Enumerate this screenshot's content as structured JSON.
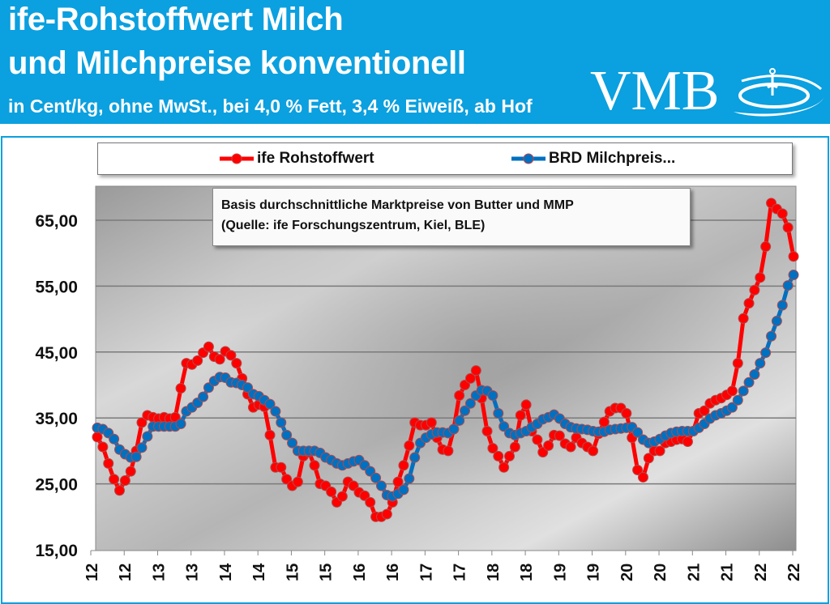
{
  "header": {
    "title_line1": "ife-Rohstoffwert Milch",
    "title_line2": "und Milchpreise konventionell",
    "subtitle": "in Cent/kg, ohne MwSt., bei 4,0 % Fett, 3,4 % Eiweiß, ab Hof",
    "logo_text": "VMB",
    "background_color": "#0ba0df"
  },
  "annotation": {
    "line1": "Basis durchschnittliche Marktpreise von Butter und MMP",
    "line2": "(Quelle: ife Forschungszentrum, Kiel, BLE)"
  },
  "chart_data": {
    "type": "line",
    "title": "",
    "xlabel": "",
    "ylabel": "",
    "ylim": [
      15,
      70
    ],
    "y_ticks": [
      "15,00",
      "25,00",
      "35,00",
      "45,00",
      "55,00",
      "65,00"
    ],
    "y_tick_values": [
      15,
      25,
      35,
      45,
      55,
      65
    ],
    "x_tick_labels": [
      "12",
      "12",
      "13",
      "13",
      "14",
      "14",
      "15",
      "15",
      "16",
      "16",
      "17",
      "17",
      "18",
      "18",
      "19",
      "19",
      "20",
      "20",
      "21",
      "21",
      "22",
      "22"
    ],
    "grid": true,
    "legend_position": "top",
    "series": [
      {
        "name": "ife Rohstoffwert",
        "color": "#ff0000",
        "values": [
          32.1,
          30.6,
          28.1,
          25.7,
          24.0,
          25.5,
          26.9,
          30,
          34.3,
          35.4,
          35.1,
          34.9,
          35.1,
          34.9,
          35.1,
          39.5,
          43.3,
          43.1,
          43.7,
          44.9,
          45.8,
          44.3,
          43.9,
          45.1,
          44.5,
          43.3,
          41,
          38.6,
          36.6,
          37,
          36.7,
          32.4,
          27.5,
          27.5,
          25.7,
          24.7,
          25.3,
          29.2,
          29.8,
          27.8,
          25,
          24.7,
          23.8,
          22.2,
          23.1,
          25.3,
          24.7,
          23.7,
          23.2,
          22.2,
          20,
          20,
          20.4,
          22.2,
          25.3,
          27.8,
          30.8,
          34.3,
          33.9,
          33.9,
          34.3,
          32,
          30.2,
          30,
          33.3,
          38.4,
          40,
          41,
          42.2,
          38,
          33,
          30.4,
          29.2,
          27.5,
          29.2,
          30.6,
          35.4,
          37,
          33,
          31.7,
          29.8,
          30.8,
          32.4,
          32.3,
          31.1,
          30.6,
          32,
          31.2,
          30.6,
          30,
          32.6,
          34.4,
          36,
          36.5,
          36.5,
          35.7,
          32,
          27.1,
          26,
          28.9,
          30,
          30,
          31.2,
          31.4,
          31.7,
          31.8,
          31.4,
          33,
          35.7,
          36.1,
          37.2,
          37.7,
          38,
          38.5,
          39.1,
          43.3,
          50.1,
          52.4,
          54.4,
          56.3,
          61,
          67.6,
          66.7,
          66,
          63.9,
          59.5
        ]
      },
      {
        "name": "BRD Milchpreis...",
        "color": "#0070c0",
        "values": [
          33.5,
          33.3,
          32.7,
          31.8,
          30.2,
          29.5,
          29,
          29.1,
          30.5,
          32.2,
          33.7,
          33.7,
          33.7,
          33.7,
          33.7,
          34.1,
          36,
          36.6,
          37.3,
          38.2,
          39.6,
          40.6,
          41.2,
          41.1,
          40.4,
          40.3,
          40,
          39.6,
          38.6,
          38.3,
          37.7,
          37.1,
          36,
          34.3,
          32.4,
          31.2,
          30,
          30,
          30,
          30,
          29.7,
          29,
          28.6,
          28.1,
          27.8,
          28.1,
          28.4,
          28.6,
          27.8,
          26.9,
          25.9,
          24.7,
          23.3,
          23.1,
          23.5,
          24.1,
          25.8,
          29,
          31.2,
          32,
          32.5,
          32.8,
          32.8,
          32.7,
          33.3,
          34.6,
          36.1,
          37.2,
          38.4,
          39.2,
          39.1,
          38.4,
          35.7,
          33.7,
          32.7,
          32.4,
          32.7,
          33,
          33.6,
          34.1,
          34.8,
          35.1,
          35.5,
          34.9,
          34.1,
          33.6,
          33.4,
          33.3,
          33.2,
          33,
          32.9,
          32.9,
          33.2,
          33.3,
          33.4,
          33.5,
          33.6,
          32.8,
          31.7,
          31.2,
          31.4,
          31.8,
          32.3,
          32.7,
          32.9,
          33,
          33,
          33,
          33.5,
          34.1,
          34.9,
          35.4,
          35.7,
          36.1,
          36.6,
          37.7,
          39.1,
          40.4,
          41.6,
          43.3,
          44.9,
          47.4,
          49.7,
          52.1,
          55.1,
          56.7
        ]
      }
    ]
  }
}
